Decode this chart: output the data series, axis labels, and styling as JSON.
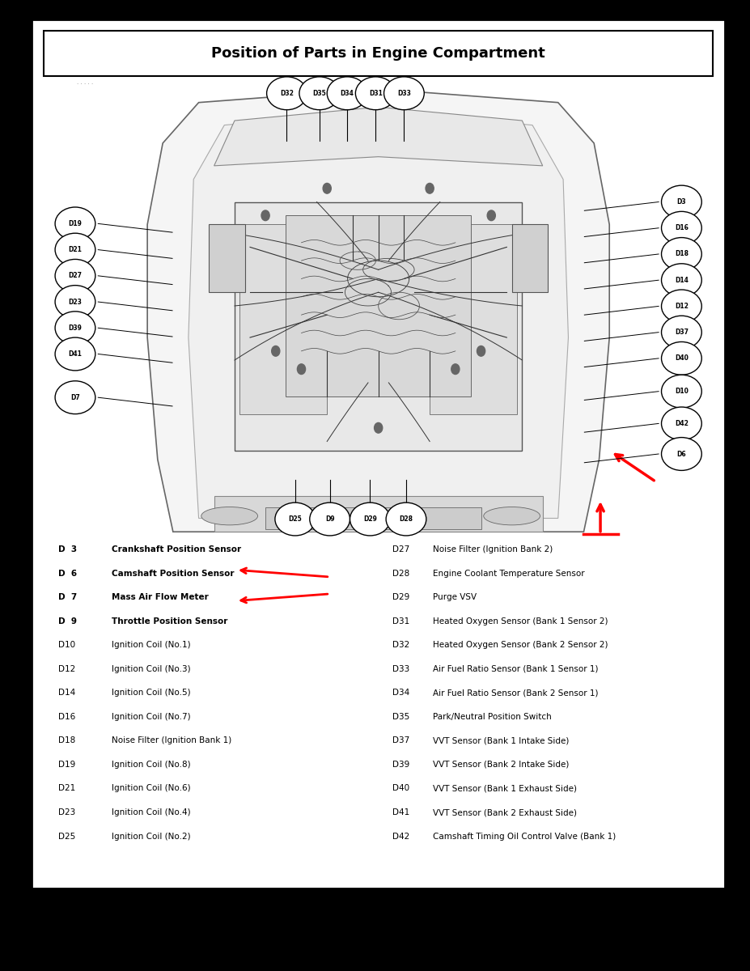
{
  "title": "Position of Parts in Engine Compartment",
  "bg_color": "#000000",
  "panel_bg": "#ffffff",
  "title_fontsize": 13,
  "legend_left": [
    [
      "D  3",
      "Crankshaft Position Sensor",
      true
    ],
    [
      "D  6",
      "Camshaft Position Sensor",
      true
    ],
    [
      "D  7",
      "Mass Air Flow Meter",
      true
    ],
    [
      "D  9",
      "Throttle Position Sensor",
      true
    ],
    [
      "D10",
      "Ignition Coil (No.1)",
      false
    ],
    [
      "D12",
      "Ignition Coil (No.3)",
      false
    ],
    [
      "D14",
      "Ignition Coil (No.5)",
      false
    ],
    [
      "D16",
      "Ignition Coil (No.7)",
      false
    ],
    [
      "D18",
      "Noise Filter (Ignition Bank 1)",
      false
    ],
    [
      "D19",
      "Ignition Coil (No.8)",
      false
    ],
    [
      "D21",
      "Ignition Coil (No.6)",
      false
    ],
    [
      "D23",
      "Ignition Coil (No.4)",
      false
    ],
    [
      "D25",
      "Ignition Coil (No.2)",
      false
    ]
  ],
  "legend_right": [
    [
      "D27",
      "Noise Filter (Ignition Bank 2)"
    ],
    [
      "D28",
      "Engine Coolant Temperature Sensor"
    ],
    [
      "D29",
      "Purge VSV"
    ],
    [
      "D31",
      "Heated Oxygen Sensor (Bank 1 Sensor 2)"
    ],
    [
      "D32",
      "Heated Oxygen Sensor (Bank 2 Sensor 2)"
    ],
    [
      "D33",
      "Air Fuel Ratio Sensor (Bank 1 Sensor 1)"
    ],
    [
      "D34",
      "Air Fuel Ratio Sensor (Bank 2 Sensor 1)"
    ],
    [
      "D35",
      "Park/Neutral Position Switch"
    ],
    [
      "D37",
      "VVT Sensor (Bank 1 Intake Side)"
    ],
    [
      "D39",
      "VVT Sensor (Bank 2 Intake Side)"
    ],
    [
      "D40",
      "VVT Sensor (Bank 1 Exhaust Side)"
    ],
    [
      "D41",
      "VVT Sensor (Bank 2 Exhaust Side)"
    ],
    [
      "D42",
      "Camshaft Timing Oil Control Valve (Bank 1)"
    ]
  ],
  "top_labels": [
    [
      0.368,
      "D32"
    ],
    [
      0.415,
      "D35"
    ],
    [
      0.455,
      "D34"
    ],
    [
      0.496,
      "D31"
    ],
    [
      0.537,
      "D33"
    ]
  ],
  "left_labels": [
    [
      0.765,
      "D19"
    ],
    [
      0.735,
      "D21"
    ],
    [
      0.705,
      "D27"
    ],
    [
      0.675,
      "D23"
    ],
    [
      0.645,
      "D39"
    ],
    [
      0.615,
      "D41"
    ],
    [
      0.565,
      "D7"
    ]
  ],
  "right_labels": [
    [
      0.79,
      "D3"
    ],
    [
      0.76,
      "D16"
    ],
    [
      0.73,
      "D18"
    ],
    [
      0.7,
      "D14"
    ],
    [
      0.67,
      "D12"
    ],
    [
      0.64,
      "D37"
    ],
    [
      0.61,
      "D40"
    ],
    [
      0.572,
      "D10"
    ],
    [
      0.535,
      "D42"
    ],
    [
      0.5,
      "D6"
    ]
  ],
  "bottom_labels": [
    [
      0.38,
      "D25"
    ],
    [
      0.43,
      "D9"
    ],
    [
      0.488,
      "D29"
    ],
    [
      0.54,
      "D28"
    ]
  ]
}
